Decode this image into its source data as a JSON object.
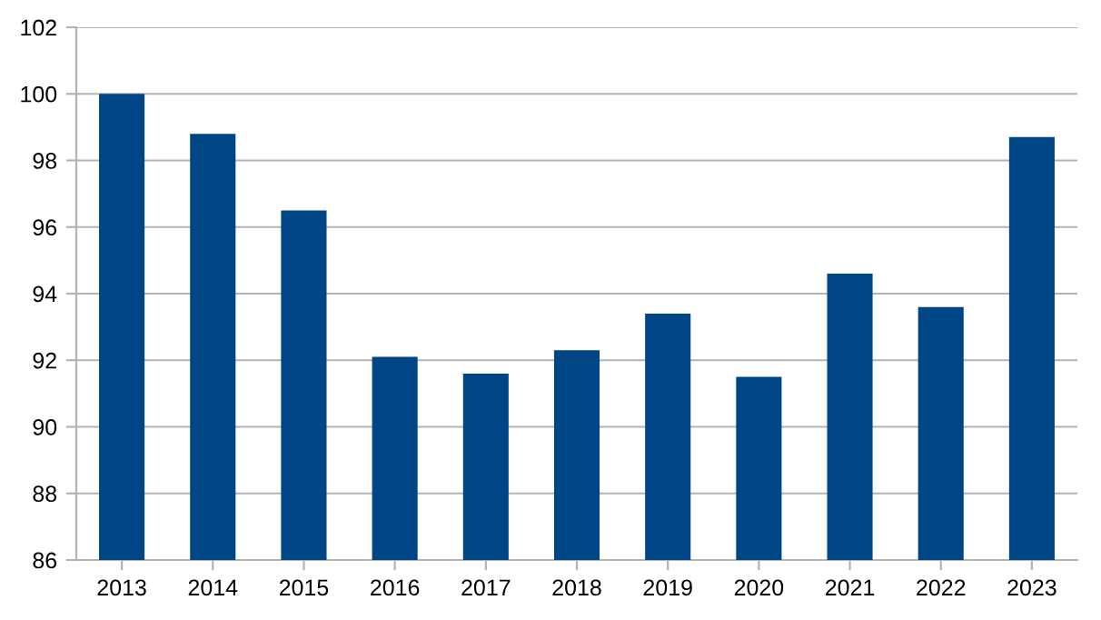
{
  "chart_data": {
    "type": "bar",
    "categories": [
      "2013",
      "2014",
      "2015",
      "2016",
      "2017",
      "2018",
      "2019",
      "2020",
      "2021",
      "2022",
      "2023"
    ],
    "values": [
      100.0,
      98.8,
      96.5,
      92.1,
      91.6,
      92.3,
      93.4,
      91.5,
      94.6,
      93.6,
      98.7
    ],
    "color": "#004586",
    "ylim": [
      86,
      102
    ],
    "yticks": [
      86,
      88,
      90,
      92,
      94,
      96,
      98,
      100,
      102
    ],
    "grid": "y"
  }
}
